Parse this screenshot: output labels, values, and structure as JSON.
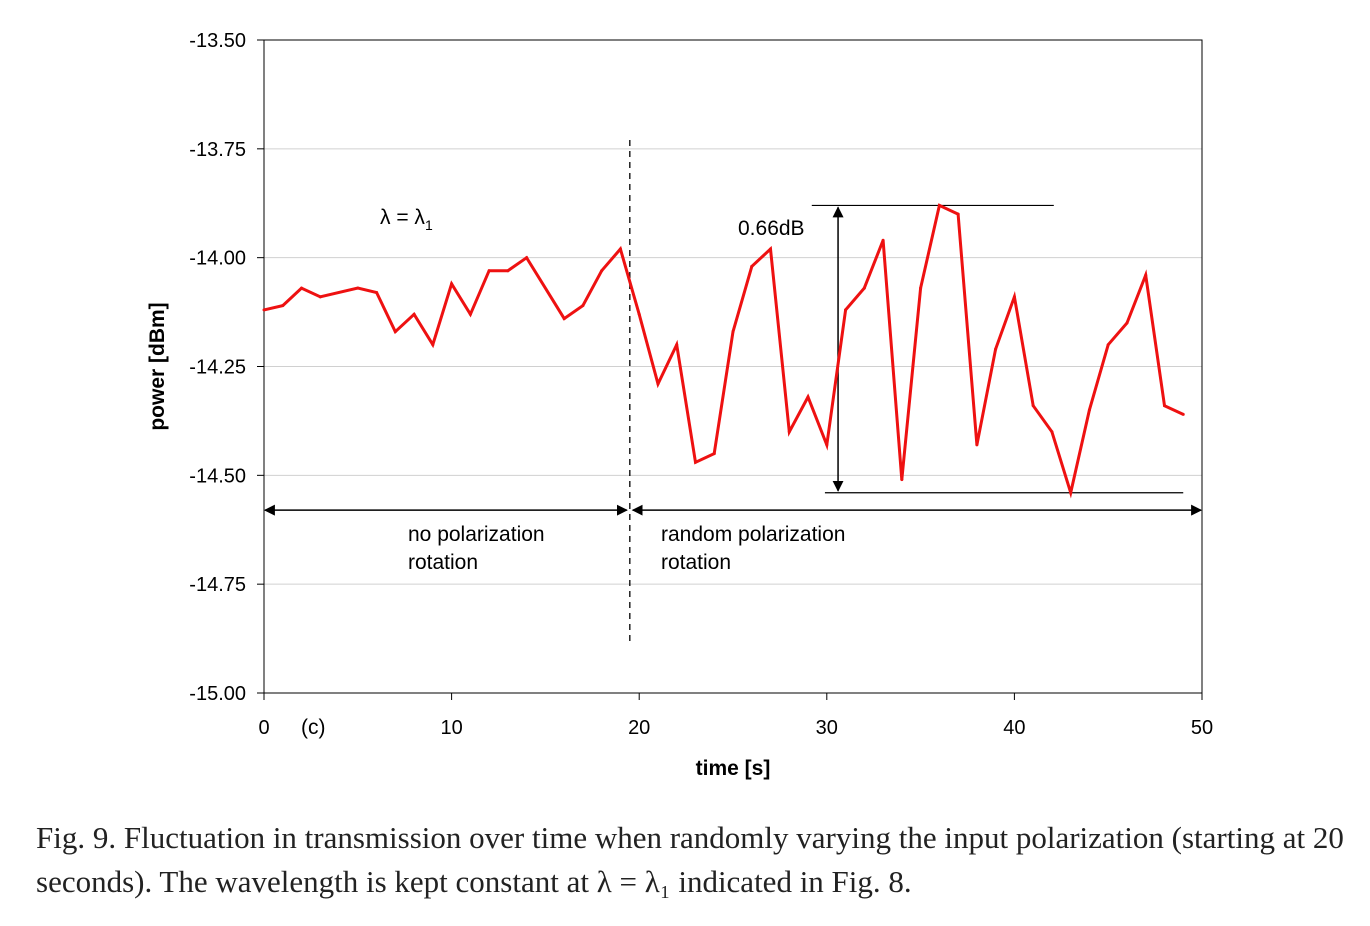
{
  "chart_data": {
    "type": "line",
    "xlabel": "time [s]",
    "ylabel": "power [dBm]",
    "xlim": [
      0,
      50
    ],
    "ylim": [
      -15.0,
      -13.5
    ],
    "x_ticks": [
      0,
      10,
      20,
      30,
      40,
      50
    ],
    "x_tick_labels": [
      "0",
      "10",
      "20",
      "30",
      "40",
      "50"
    ],
    "y_ticks": [
      -13.5,
      -13.75,
      -14.0,
      -14.25,
      -14.5,
      -14.75,
      -15.0
    ],
    "y_tick_labels": [
      "-13.50",
      "-13.75",
      "-14.00",
      "-14.25",
      "-14.50",
      "-14.75",
      "-15.00"
    ],
    "grid": "horizontal",
    "panel_label": "(c)",
    "series": [
      {
        "color": "#ee1111",
        "x": [
          0,
          1,
          2,
          3,
          5,
          6,
          7,
          8,
          9,
          10,
          11,
          12,
          13,
          14,
          16,
          17,
          18,
          19,
          20,
          21,
          22,
          23,
          24,
          25,
          26,
          27,
          28,
          29,
          30,
          31,
          32,
          33,
          34,
          35,
          36,
          37,
          38,
          39,
          40,
          41,
          42,
          43,
          44,
          45,
          46,
          47,
          48,
          49
        ],
        "y": [
          -14.12,
          -14.11,
          -14.07,
          -14.09,
          -14.07,
          -14.08,
          -14.17,
          -14.13,
          -14.2,
          -14.06,
          -14.13,
          -14.03,
          -14.03,
          -14.0,
          -14.14,
          -14.11,
          -14.03,
          -13.98,
          -14.13,
          -14.29,
          -14.2,
          -14.47,
          -14.45,
          -14.17,
          -14.02,
          -13.98,
          -14.4,
          -14.32,
          -14.43,
          -14.12,
          -14.07,
          -13.96,
          -14.51,
          -14.07,
          -13.88,
          -13.9,
          -14.43,
          -14.21,
          -14.09,
          -14.34,
          -14.4,
          -14.54,
          -14.35,
          -14.2,
          -14.15,
          -14.04,
          -14.34,
          -14.36
        ]
      }
    ],
    "annotations": {
      "lambda_label": "λ = λ",
      "lambda_sub": "1",
      "divider_x": 19.5,
      "range_label": "0.66dB",
      "range_top": -13.88,
      "range_bottom": -14.54,
      "range_x": 30.6,
      "range_top_x": [
        29.2,
        42.1
      ],
      "range_bottom_x": [
        29.9,
        49.0
      ],
      "arrow_y": -14.58,
      "left_region_line1": "no polarization",
      "left_region_line2": "rotation",
      "right_region_line1": "random polarization",
      "right_region_line2": "rotation"
    }
  },
  "caption": "Fig. 9. Fluctuation in transmission over time when randomly varying the input polarization (starting at 20 seconds). The wavelength is kept constant at λ = λ₁ indicated in Fig. 8."
}
